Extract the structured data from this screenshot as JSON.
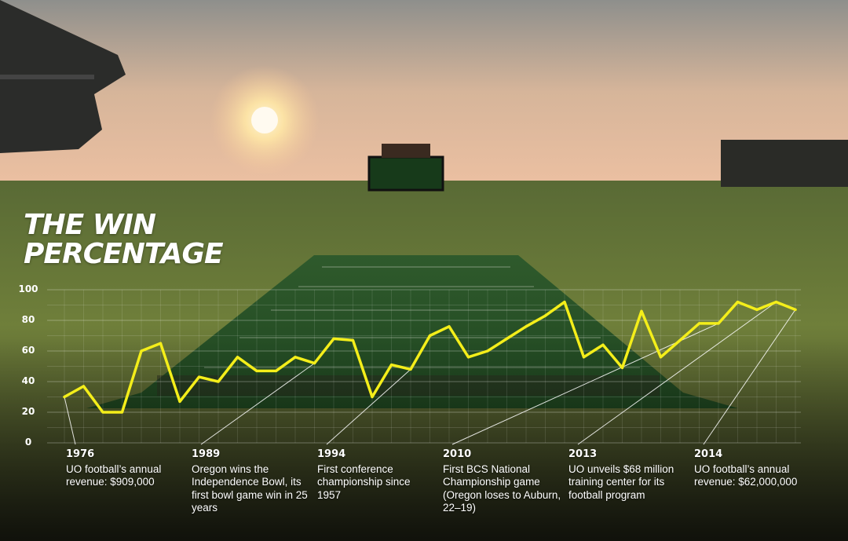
{
  "page": {
    "title_line1": "THE WIN",
    "title_line2": "PERCENTAGE"
  },
  "colors": {
    "line": "#f4ee1a",
    "text": "#ffffff",
    "grid": "#ffffff"
  },
  "chart_data": {
    "type": "line",
    "x": [
      1976,
      1977,
      1978,
      1979,
      1980,
      1981,
      1982,
      1983,
      1984,
      1985,
      1986,
      1987,
      1988,
      1989,
      1990,
      1991,
      1992,
      1993,
      1994,
      1995,
      1996,
      1997,
      1998,
      1999,
      2000,
      2001,
      2002,
      2003,
      2004,
      2005,
      2006,
      2007,
      2008,
      2009,
      2010,
      2011,
      2012,
      2013,
      2014
    ],
    "series": [
      {
        "values": [
          30,
          37,
          20,
          20,
          60,
          65,
          27,
          43,
          40,
          56,
          47,
          47,
          56,
          52,
          68,
          67,
          30,
          51,
          48,
          70,
          76,
          56,
          60,
          68,
          76,
          83,
          92,
          56,
          64,
          49,
          86,
          56,
          67,
          78,
          78,
          92,
          87,
          92,
          87
        ]
      }
    ],
    "ylim": [
      0,
      100
    ],
    "yticks": [
      "100",
      "80",
      "60",
      "40",
      "20",
      "0"
    ],
    "grid": true,
    "annotations": [
      {
        "year": "1976",
        "text": "UO football’s annual revenue: $909,000"
      },
      {
        "year": "1989",
        "text": "Oregon wins the Independence Bowl, its first bowl game win in 25 years"
      },
      {
        "year": "1994",
        "text": "First conference championship since 1957"
      },
      {
        "year": "2010",
        "text": "First BCS National Championship game (Oregon loses to Auburn, 22–19)"
      },
      {
        "year": "2013",
        "text": "UO unveils $68 million training center for its football program"
      },
      {
        "year": "2014",
        "text": "UO football’s annual revenue: $62,000,000"
      }
    ]
  }
}
